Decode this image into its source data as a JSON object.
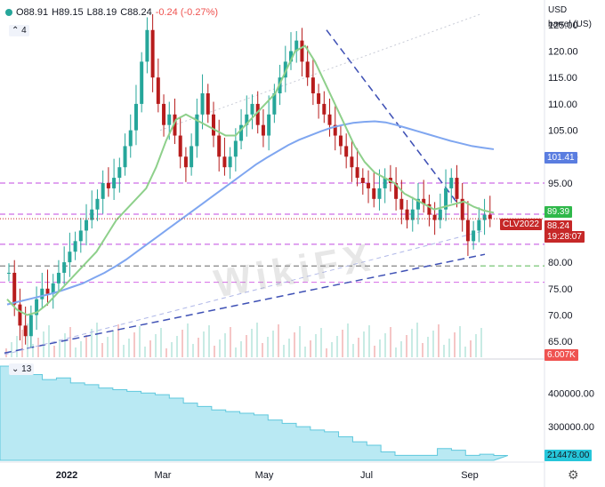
{
  "header": {
    "open": "O88.91",
    "high": "H89.15",
    "low": "L88.19",
    "close": "C88.24",
    "change": "-0.24 (-0.27%)",
    "main_study_count": "4",
    "sub_study_count": "13"
  },
  "axis_units": {
    "currency": "USD",
    "unit": "barrel (US)"
  },
  "tags": {
    "ma200": "101.41",
    "ma20": "89.39",
    "symbol": "CLV2022",
    "last": "88.24",
    "countdown": "19:28:07",
    "volume_cut": "6.007K",
    "oi_last": "214478.00"
  },
  "colors": {
    "up": "#26a69a",
    "down": "#b71c1c",
    "ma_slow": "#7fa6f0",
    "ma_fast": "#8ed08b",
    "trend": "#3f51b5",
    "level": "#c04ae0",
    "oi": "#7fd4e8"
  },
  "watermark": "WikiFX",
  "chart_data": [
    {
      "type": "candlestick",
      "ylim": [
        62,
        128
      ],
      "yticks": [
        "125.00",
        "120.00",
        "115.00",
        "110.00",
        "105.00",
        "100.00",
        "95.00",
        "90.00",
        "85.00",
        "80.00",
        "75.00",
        "70.00",
        "65.00"
      ],
      "ytick_values": [
        125,
        120,
        115,
        110,
        105,
        100,
        95,
        90,
        85,
        80,
        75,
        70,
        65
      ],
      "xticks": [
        "2022",
        "Mar",
        "May",
        "Jul",
        "Sep"
      ],
      "horizontal_levels": [
        95,
        89.1,
        83.4,
        79.3,
        76.2
      ],
      "ohlc_closes": [
        78,
        72,
        68,
        66,
        70,
        73,
        75,
        74,
        76,
        78,
        80,
        82,
        84,
        86,
        88,
        90,
        92,
        95,
        94,
        96,
        98,
        102,
        105,
        110,
        118,
        124,
        115,
        110,
        106,
        108,
        104,
        100,
        98,
        102,
        108,
        112,
        108,
        104,
        100,
        98,
        100,
        103,
        106,
        108,
        110,
        106,
        104,
        108,
        112,
        115,
        118,
        120,
        122,
        118,
        115,
        112,
        110,
        108,
        106,
        104,
        102,
        100,
        98,
        96,
        95,
        94,
        92,
        94,
        96,
        95,
        92,
        90,
        88,
        90,
        92,
        91,
        89,
        88,
        90,
        94,
        96,
        92,
        88,
        84,
        86,
        88,
        89,
        88.24
      ],
      "ma_slow": [
        72,
        72.5,
        73,
        73.5,
        74,
        74.6,
        75.3,
        76,
        77,
        78,
        79.2,
        80.5,
        82,
        83.5,
        85,
        86.5,
        88,
        89.5,
        91,
        92.5,
        94,
        95.5,
        97,
        98.5,
        99.8,
        101,
        102.2,
        103.2,
        104,
        104.8,
        105.5,
        106,
        106.4,
        106.6,
        106.7,
        106.5,
        106,
        105.4,
        104.8,
        104.2,
        103.6,
        103,
        102.5,
        102,
        101.7,
        101.41
      ],
      "ma_fast": [
        73,
        71,
        70,
        70.5,
        72,
        74,
        76,
        78,
        80,
        82,
        85,
        88,
        90,
        92,
        94,
        98,
        103,
        107,
        108,
        107,
        106,
        105,
        104,
        104,
        106,
        108,
        110,
        112,
        116,
        120,
        121,
        118,
        114,
        110,
        106,
        102,
        99,
        97,
        96,
        95,
        93,
        92,
        91,
        90,
        90.5,
        91,
        91.5,
        90.5,
        89.8,
        89.39
      ],
      "open_interest": [
        480000,
        470000,
        455000,
        440000,
        445000,
        430000,
        425000,
        415000,
        410000,
        405000,
        400000,
        395000,
        385000,
        370000,
        360000,
        350000,
        345000,
        340000,
        335000,
        320000,
        310000,
        300000,
        290000,
        285000,
        270000,
        255000,
        245000,
        225000,
        215000,
        215000,
        215000,
        235000,
        230000,
        215000,
        218000,
        214478
      ],
      "oi_yticks": [
        "400000.00",
        "300000.00"
      ],
      "oi_ytick_values": [
        400000,
        300000
      ]
    }
  ]
}
